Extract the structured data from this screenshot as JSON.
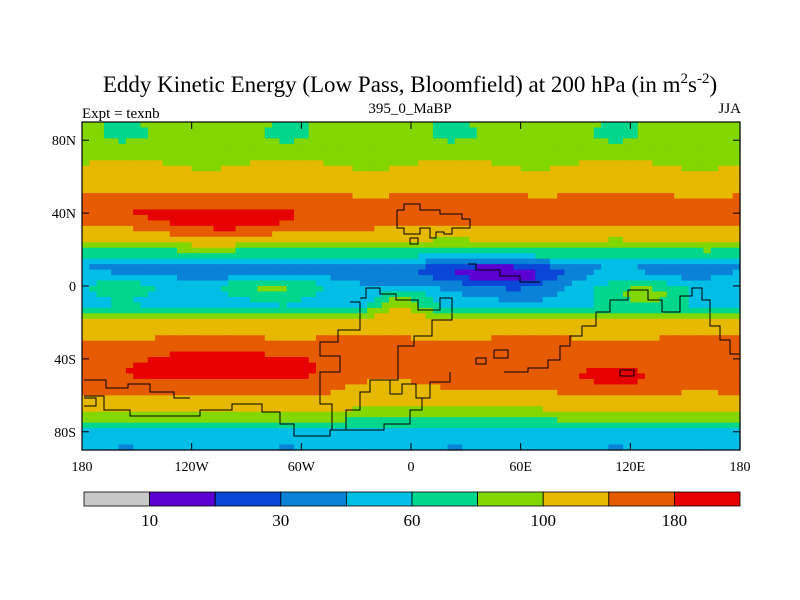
{
  "chart_data": {
    "type": "heatmap",
    "title": "Eddy Kinetic Energy (Low Pass, Bloomfield) at 200 hPa (in m",
    "title_sup1": "2",
    "title_mid": "s",
    "title_sup2": "-2",
    "title_end": ")",
    "left_label": "Expt = texnb",
    "center_label": "395_0_MaBP",
    "right_label": "JJA",
    "xlim": [
      -180,
      180
    ],
    "ylim": [
      -90,
      90
    ],
    "x_ticks": [
      {
        "value": -180,
        "label": "180"
      },
      {
        "value": -120,
        "label": "120W"
      },
      {
        "value": -60,
        "label": "60W"
      },
      {
        "value": 0,
        "label": "0"
      },
      {
        "value": 60,
        "label": "60E"
      },
      {
        "value": 120,
        "label": "120E"
      },
      {
        "value": 180,
        "label": "180"
      }
    ],
    "y_ticks": [
      {
        "value": 80,
        "label": "80N"
      },
      {
        "value": 40,
        "label": "40N"
      },
      {
        "value": 0,
        "label": "0"
      },
      {
        "value": -40,
        "label": "40S"
      },
      {
        "value": -80,
        "label": "80S"
      }
    ],
    "colorbar": {
      "colors": [
        "#c8c8c8",
        "#5a00d2",
        "#0a46d7",
        "#0a82d7",
        "#00bee6",
        "#00d78c",
        "#82d700",
        "#e6b900",
        "#e65a00",
        "#e60000"
      ],
      "labels": [
        {
          "after_box": 1,
          "label": "10"
        },
        {
          "after_box": 3,
          "label": "30"
        },
        {
          "after_box": 5,
          "label": "60"
        },
        {
          "after_box": 7,
          "label": "100"
        },
        {
          "after_box": 9,
          "label": "180"
        }
      ]
    },
    "field": {
      "bands": [
        {
          "lat": 90,
          "value": 85
        },
        {
          "lat": 80,
          "value": 82
        },
        {
          "lat": 70,
          "value": 95
        },
        {
          "lat": 60,
          "value": 112
        },
        {
          "lat": 50,
          "value": 140
        },
        {
          "lat": 40,
          "value": 160
        },
        {
          "lat": 30,
          "value": 125
        },
        {
          "lat": 20,
          "value": 80
        },
        {
          "lat": 10,
          "value": 48
        },
        {
          "lat": 0,
          "value": 60
        },
        {
          "lat": -10,
          "value": 55
        },
        {
          "lat": -20,
          "value": 110
        },
        {
          "lat": -30,
          "value": 145
        },
        {
          "lat": -40,
          "value": 165
        },
        {
          "lat": -50,
          "value": 170
        },
        {
          "lat": -60,
          "value": 140
        },
        {
          "lat": -70,
          "value": 95
        },
        {
          "lat": -80,
          "value": 55
        },
        {
          "lat": -90,
          "value": 50
        }
      ],
      "anomalies": [
        {
          "lon": -95,
          "lat": 35,
          "dlon": 45,
          "dlat": 9,
          "amp": 55
        },
        {
          "lon": 30,
          "lat": 40,
          "dlon": 40,
          "dlat": 8,
          "amp": 15
        },
        {
          "lon": 125,
          "lat": 38,
          "dlon": 35,
          "dlat": 7,
          "amp": 10
        },
        {
          "lon": -140,
          "lat": 40,
          "dlon": 25,
          "dlat": 8,
          "amp": 20
        },
        {
          "lon": 40,
          "lat": 5,
          "dlon": 50,
          "dlat": 11,
          "amp": -40
        },
        {
          "lon": -80,
          "lat": 5,
          "dlon": 40,
          "dlat": 10,
          "amp": -20
        },
        {
          "lon": -150,
          "lat": 10,
          "dlon": 25,
          "dlat": 6,
          "amp": -15
        },
        {
          "lon": 150,
          "lat": 10,
          "dlon": 25,
          "dlat": 6,
          "amp": -15
        },
        {
          "lon": -80,
          "lat": 0,
          "dlon": 25,
          "dlat": 6,
          "amp": 35
        },
        {
          "lon": -5,
          "lat": -10,
          "dlon": 15,
          "dlat": 8,
          "amp": 40
        },
        {
          "lon": 130,
          "lat": -5,
          "dlon": 20,
          "dlat": 6,
          "amp": 30
        },
        {
          "lon": -100,
          "lat": -42,
          "dlon": 60,
          "dlat": 10,
          "amp": 30
        },
        {
          "lon": 110,
          "lat": -50,
          "dlon": 20,
          "dlat": 6,
          "amp": 25
        },
        {
          "lon": -10,
          "lat": -55,
          "dlon": 30,
          "dlat": 10,
          "amp": -25
        },
        {
          "lon": 30,
          "lat": -65,
          "dlon": 30,
          "dlat": 10,
          "amp": -20
        }
      ]
    }
  }
}
